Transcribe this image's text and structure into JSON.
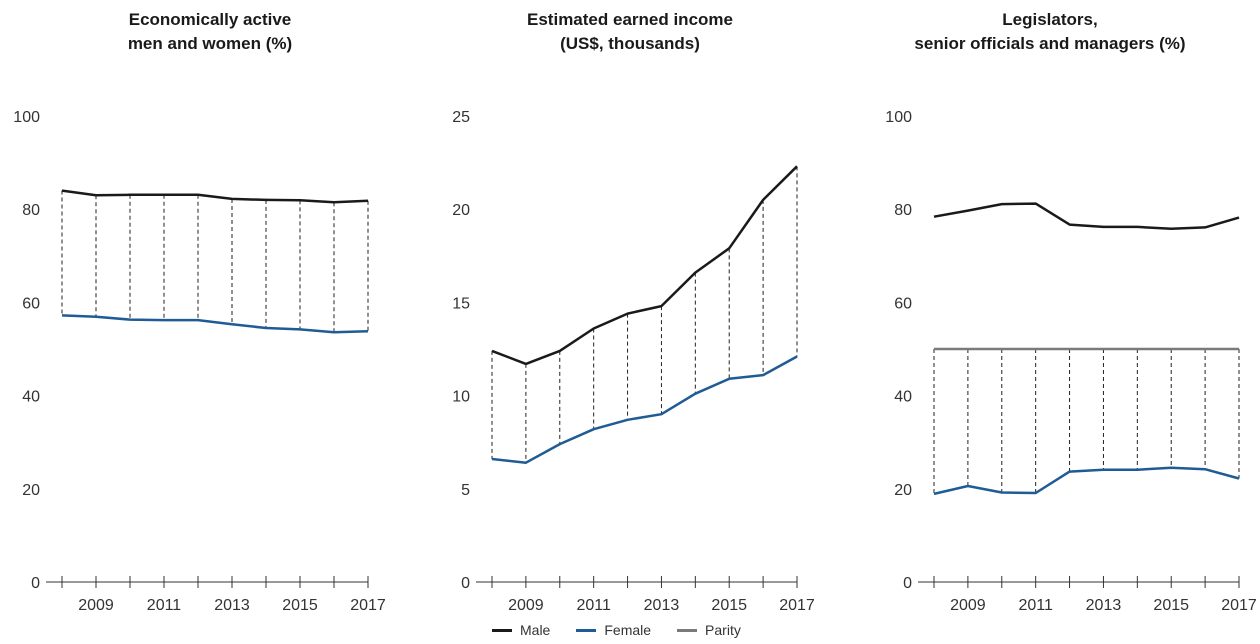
{
  "legend": {
    "male_label": "Male",
    "female_label": "Female",
    "parity_label": "Parity"
  },
  "colors": {
    "male": "#1a1a1a",
    "female": "#1f5b94",
    "parity": "#7a7a7a",
    "connector": "#222222",
    "axis": "#333333"
  },
  "chart_data": [
    {
      "type": "line",
      "title_line1": "Economically active",
      "title_line2": "men and women (%)",
      "x": [
        2008,
        2009,
        2010,
        2011,
        2012,
        2013,
        2014,
        2015,
        2016,
        2017
      ],
      "x_tick_labels": [
        "2009",
        "2011",
        "2013",
        "2015",
        "2017"
      ],
      "y_ticks": [
        0,
        20,
        40,
        60,
        80,
        100
      ],
      "ylim": [
        0,
        100
      ],
      "series": [
        {
          "name": "Male",
          "values": [
            84.0,
            83.0,
            83.1,
            83.1,
            83.1,
            82.2,
            82.0,
            81.9,
            81.5,
            81.8
          ]
        },
        {
          "name": "Female",
          "values": [
            57.2,
            56.9,
            56.3,
            56.2,
            56.2,
            55.3,
            54.5,
            54.2,
            53.6,
            53.8
          ]
        }
      ],
      "parity": null
    },
    {
      "type": "line",
      "title_line1": "Estimated earned income",
      "title_line2": "(US$, thousands)",
      "x": [
        2008,
        2009,
        2010,
        2011,
        2012,
        2013,
        2014,
        2015,
        2016,
        2017
      ],
      "x_tick_labels": [
        "2009",
        "2011",
        "2013",
        "2015",
        "2017"
      ],
      "y_ticks": [
        0,
        5,
        10,
        15,
        20,
        25
      ],
      "ylim": [
        0,
        25
      ],
      "series": [
        {
          "name": "Male",
          "values": [
            12.4,
            11.7,
            12.4,
            13.6,
            14.4,
            14.8,
            16.6,
            17.9,
            20.5,
            22.3
          ]
        },
        {
          "name": "Female",
          "values": [
            6.6,
            6.4,
            7.4,
            8.2,
            8.7,
            9.0,
            10.1,
            10.9,
            11.1,
            12.1
          ]
        }
      ],
      "parity": null
    },
    {
      "type": "line",
      "title_line1": "Legislators,",
      "title_line2": "senior officials and managers (%)",
      "x": [
        2008,
        2009,
        2010,
        2011,
        2012,
        2013,
        2014,
        2015,
        2016,
        2017
      ],
      "x_tick_labels": [
        "2009",
        "2011",
        "2013",
        "2015",
        "2017"
      ],
      "y_ticks": [
        0,
        20,
        40,
        60,
        80,
        100
      ],
      "ylim": [
        0,
        100
      ],
      "series": [
        {
          "name": "Male",
          "values": [
            78.4,
            79.7,
            81.1,
            81.2,
            76.7,
            76.2,
            76.2,
            75.8,
            76.1,
            78.2
          ]
        },
        {
          "name": "Female",
          "values": [
            18.9,
            20.6,
            19.2,
            19.1,
            23.7,
            24.1,
            24.1,
            24.5,
            24.2,
            22.2
          ]
        }
      ],
      "parity": 50
    }
  ]
}
